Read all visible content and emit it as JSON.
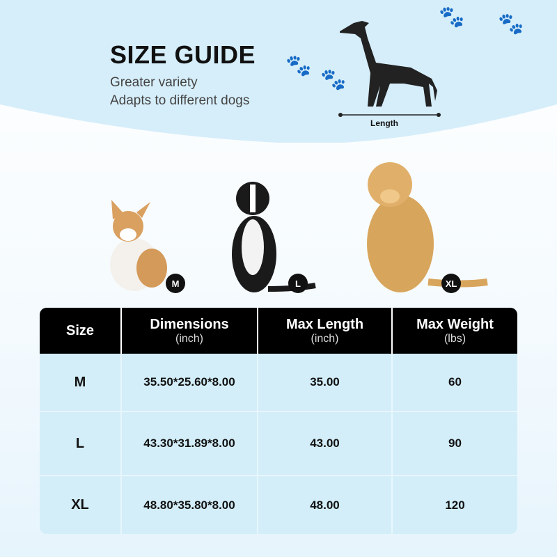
{
  "header": {
    "title": "SIZE GUIDE",
    "subtitle_1": "Greater variety",
    "subtitle_2": "Adapts to different dogs",
    "length_label": "Length"
  },
  "dogs": [
    {
      "breed_icon": "corgi",
      "size": "M"
    },
    {
      "breed_icon": "border-collie",
      "size": "L"
    },
    {
      "breed_icon": "golden-retriever",
      "size": "XL"
    }
  ],
  "table": {
    "headers": [
      {
        "label": "Size",
        "unit": ""
      },
      {
        "label": "Dimensions",
        "unit": "(inch)"
      },
      {
        "label": "Max Length",
        "unit": "(inch)"
      },
      {
        "label": "Max Weight",
        "unit": "(lbs)"
      }
    ],
    "rows": [
      [
        "M",
        "35.50*25.60*8.00",
        "35.00",
        "60"
      ],
      [
        "L",
        "43.30*31.89*8.00",
        "43.00",
        "90"
      ],
      [
        "XL",
        "48.80*35.80*8.00",
        "48.00",
        "120"
      ]
    ]
  },
  "colors": {
    "hero": "#d6eefa",
    "header_bg": "#000000",
    "table_bg": "#d3eef9"
  }
}
